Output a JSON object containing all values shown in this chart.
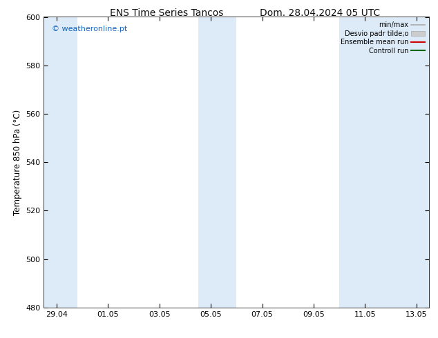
{
  "title_left": "ENS Time Series Tancos",
  "title_right": "Dom. 28.04.2024 05 UTC",
  "ylabel": "Temperature 850 hPa (°C)",
  "ylim": [
    480,
    600
  ],
  "yticks": [
    480,
    500,
    520,
    540,
    560,
    580,
    600
  ],
  "x_tick_labels": [
    "29.04",
    "01.05",
    "03.05",
    "05.05",
    "07.05",
    "09.05",
    "11.05",
    "13.05"
  ],
  "x_tick_positions": [
    0,
    2,
    4,
    6,
    8,
    10,
    12,
    14
  ],
  "xlim": [
    -0.5,
    14.5
  ],
  "shaded_bands": [
    {
      "x_start": -0.5,
      "x_end": 0.8,
      "color": "#ddeaf7"
    },
    {
      "x_start": 5.5,
      "x_end": 7.0,
      "color": "#ddeaf7"
    },
    {
      "x_start": 11.0,
      "x_end": 14.5,
      "color": "#ddeaf7"
    }
  ],
  "watermark_text": "© weatheronline.pt",
  "watermark_color": "#1565c0",
  "legend_items": [
    {
      "label": "min/max",
      "color": "#aaaaaa",
      "lw": 1.2,
      "ls": "-",
      "type": "line"
    },
    {
      "label": "Desvio padr tilde;o",
      "color": "#cccccc",
      "lw": 5,
      "ls": "-",
      "type": "patch"
    },
    {
      "label": "Ensemble mean run",
      "color": "#cc0000",
      "lw": 1.5,
      "ls": "-",
      "type": "line"
    },
    {
      "label": "Controll run",
      "color": "#006600",
      "lw": 1.5,
      "ls": "-",
      "type": "line"
    }
  ],
  "bg_color": "#ffffff",
  "title_fontsize": 10,
  "tick_fontsize": 8,
  "ylabel_fontsize": 8.5,
  "watermark_fontsize": 8
}
